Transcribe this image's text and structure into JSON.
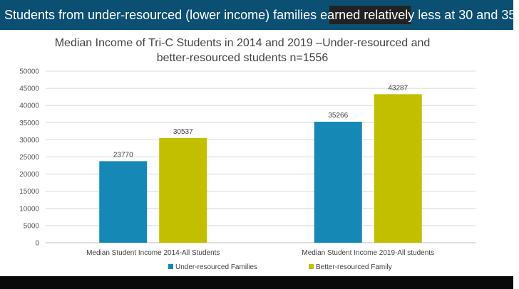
{
  "banner": {
    "text": "Students from under-resourced (lower income) families earned relatively less at 30 and 35.",
    "background": "#0b4f73"
  },
  "chart_data": {
    "type": "bar",
    "title_line1": "Median Income of Tri-C Students in 2014 and 2019 –Under-resourced and",
    "title_line2": "better-resourced students n=1556",
    "categories": [
      "Median Student Income 2014-All Students",
      "Median Student Income 2019-All students"
    ],
    "series": [
      {
        "name": "Under-resourced Families",
        "values": [
          23770,
          35266
        ],
        "color": "#1588b5"
      },
      {
        "name": "Better-resourced Family",
        "values": [
          30537,
          43287
        ],
        "color": "#c2bf00"
      }
    ],
    "ylim": [
      0,
      50000
    ],
    "yticks": [
      "0",
      "5000",
      "10000",
      "15000",
      "20000",
      "25000",
      "30000",
      "35000",
      "40000",
      "45000",
      "50000"
    ],
    "grid": true,
    "legend_position": "bottom"
  }
}
